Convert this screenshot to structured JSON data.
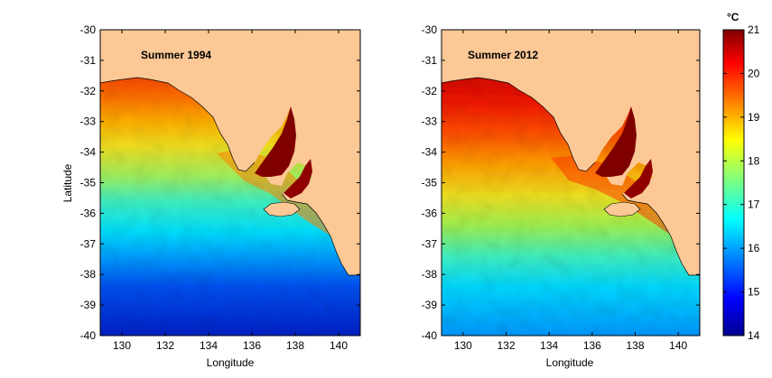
{
  "panels": [
    {
      "title": "Summer 1994",
      "ylabel": "Latitude",
      "xlabel": "Longitude"
    },
    {
      "title": "Summer 2012",
      "ylabel": "",
      "xlabel": "Longitude"
    }
  ],
  "axes": {
    "x_ticks": [
      "130",
      "132",
      "134",
      "136",
      "138",
      "140"
    ],
    "y_ticks": [
      "-30",
      "-31",
      "-32",
      "-33",
      "-34",
      "-35",
      "-36",
      "-37",
      "-38",
      "-39",
      "-40"
    ],
    "xlim": [
      129,
      141
    ],
    "ylim": [
      -40,
      -30
    ]
  },
  "colorbar": {
    "unit": "°C",
    "min": 14,
    "max": 21,
    "ticks": [
      "21",
      "20",
      "19",
      "18",
      "17",
      "16",
      "15",
      "14"
    ],
    "colormap": "jet"
  },
  "colors": {
    "land": "#fcc896",
    "frame": "#000000"
  }
}
